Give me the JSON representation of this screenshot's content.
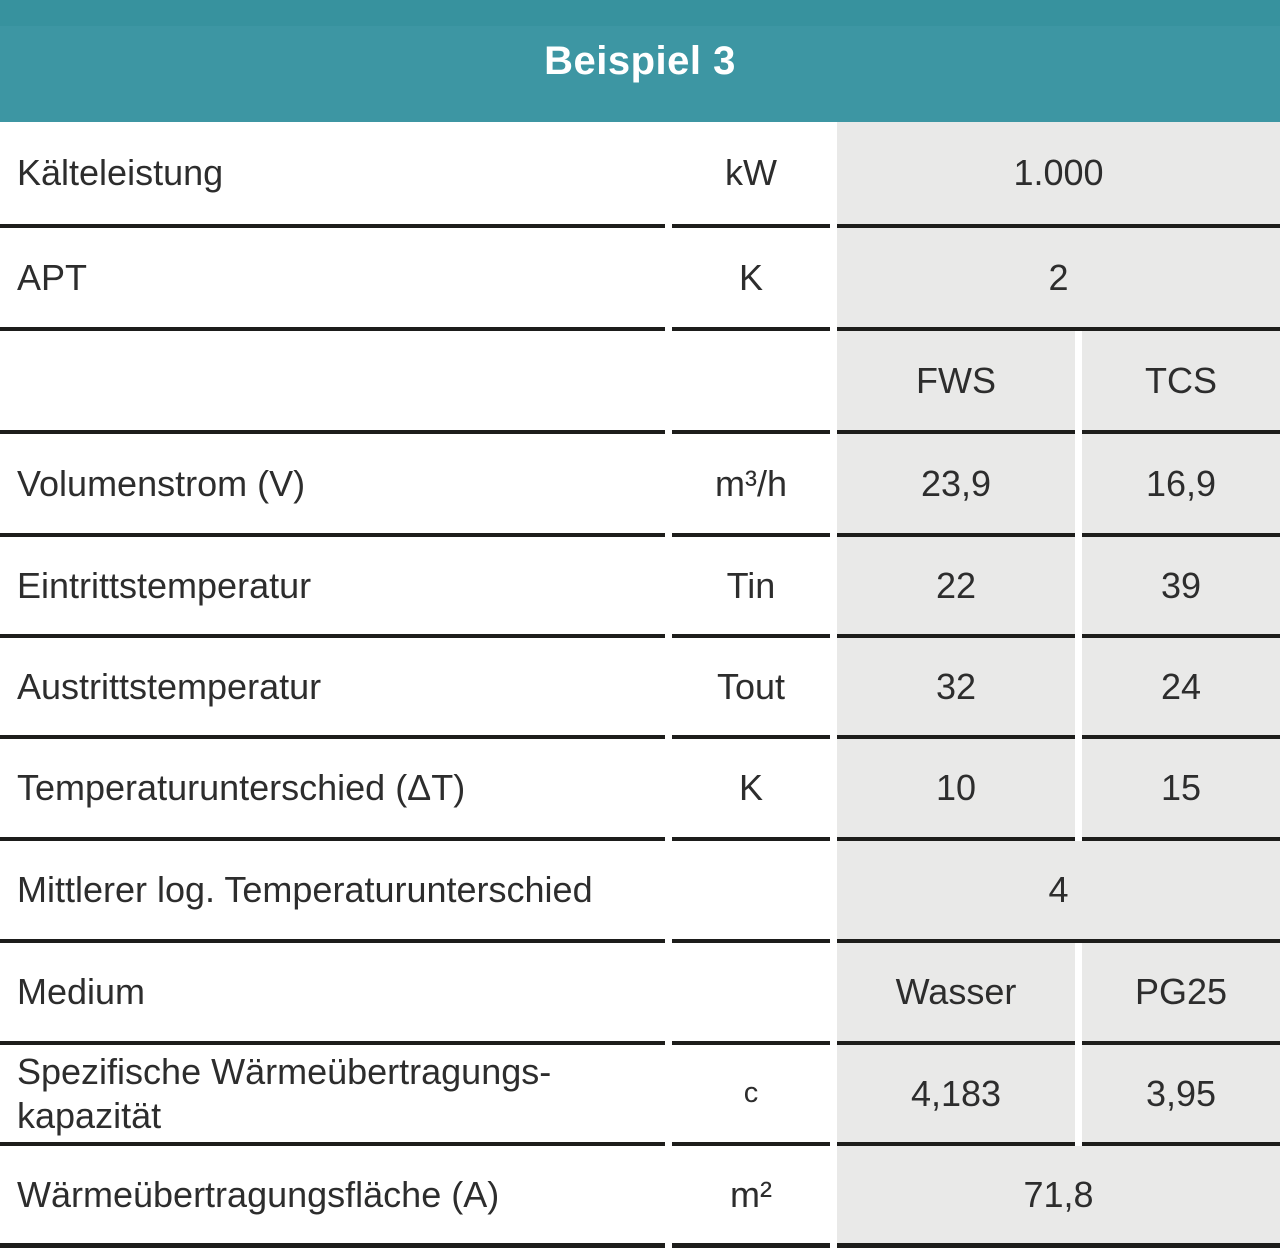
{
  "title": "Beispiel 3",
  "colors": {
    "accent_teal": "#3D96A3",
    "accent_teal_top": "#37929E",
    "value_cell_gray": "#E9E9E8",
    "border_dark": "#1D1D1B",
    "text_dark": "#2D2D2D",
    "title_text": "#FFFFFF"
  },
  "rows": [
    {
      "label": "Kälteleistung",
      "unit": "kW",
      "value": "1.000"
    },
    {
      "label": "APT",
      "unit": "K",
      "value": "2"
    },
    {
      "label": "",
      "unit": "",
      "fws": "FWS",
      "tcs": "TCS"
    },
    {
      "label": "Volumenstrom (V)",
      "unit": "m³/h",
      "fws": "23,9",
      "tcs": "16,9"
    },
    {
      "label": "Eintrittstemperatur",
      "unit": "Tin",
      "fws": "22",
      "tcs": "39"
    },
    {
      "label": "Austrittstemperatur",
      "unit": "Tout",
      "fws": "32",
      "tcs": "24"
    },
    {
      "label": "Temperaturunterschied (ΔT)",
      "unit": "K",
      "fws": "10",
      "tcs": "15"
    },
    {
      "label": "Mittlerer log. Temperaturunterschied",
      "unit": "",
      "value": "4"
    },
    {
      "label": "Medium",
      "unit": "",
      "fws": "Wasser",
      "tcs": "PG25"
    },
    {
      "label": "Spezifische Wärmeübertragungs-kapazität",
      "unit": "c",
      "fws": "4,183",
      "tcs": "3,95"
    },
    {
      "label": "Wärmeübertragungsfläche (A)",
      "unit": "m²",
      "value": "71,8"
    }
  ]
}
